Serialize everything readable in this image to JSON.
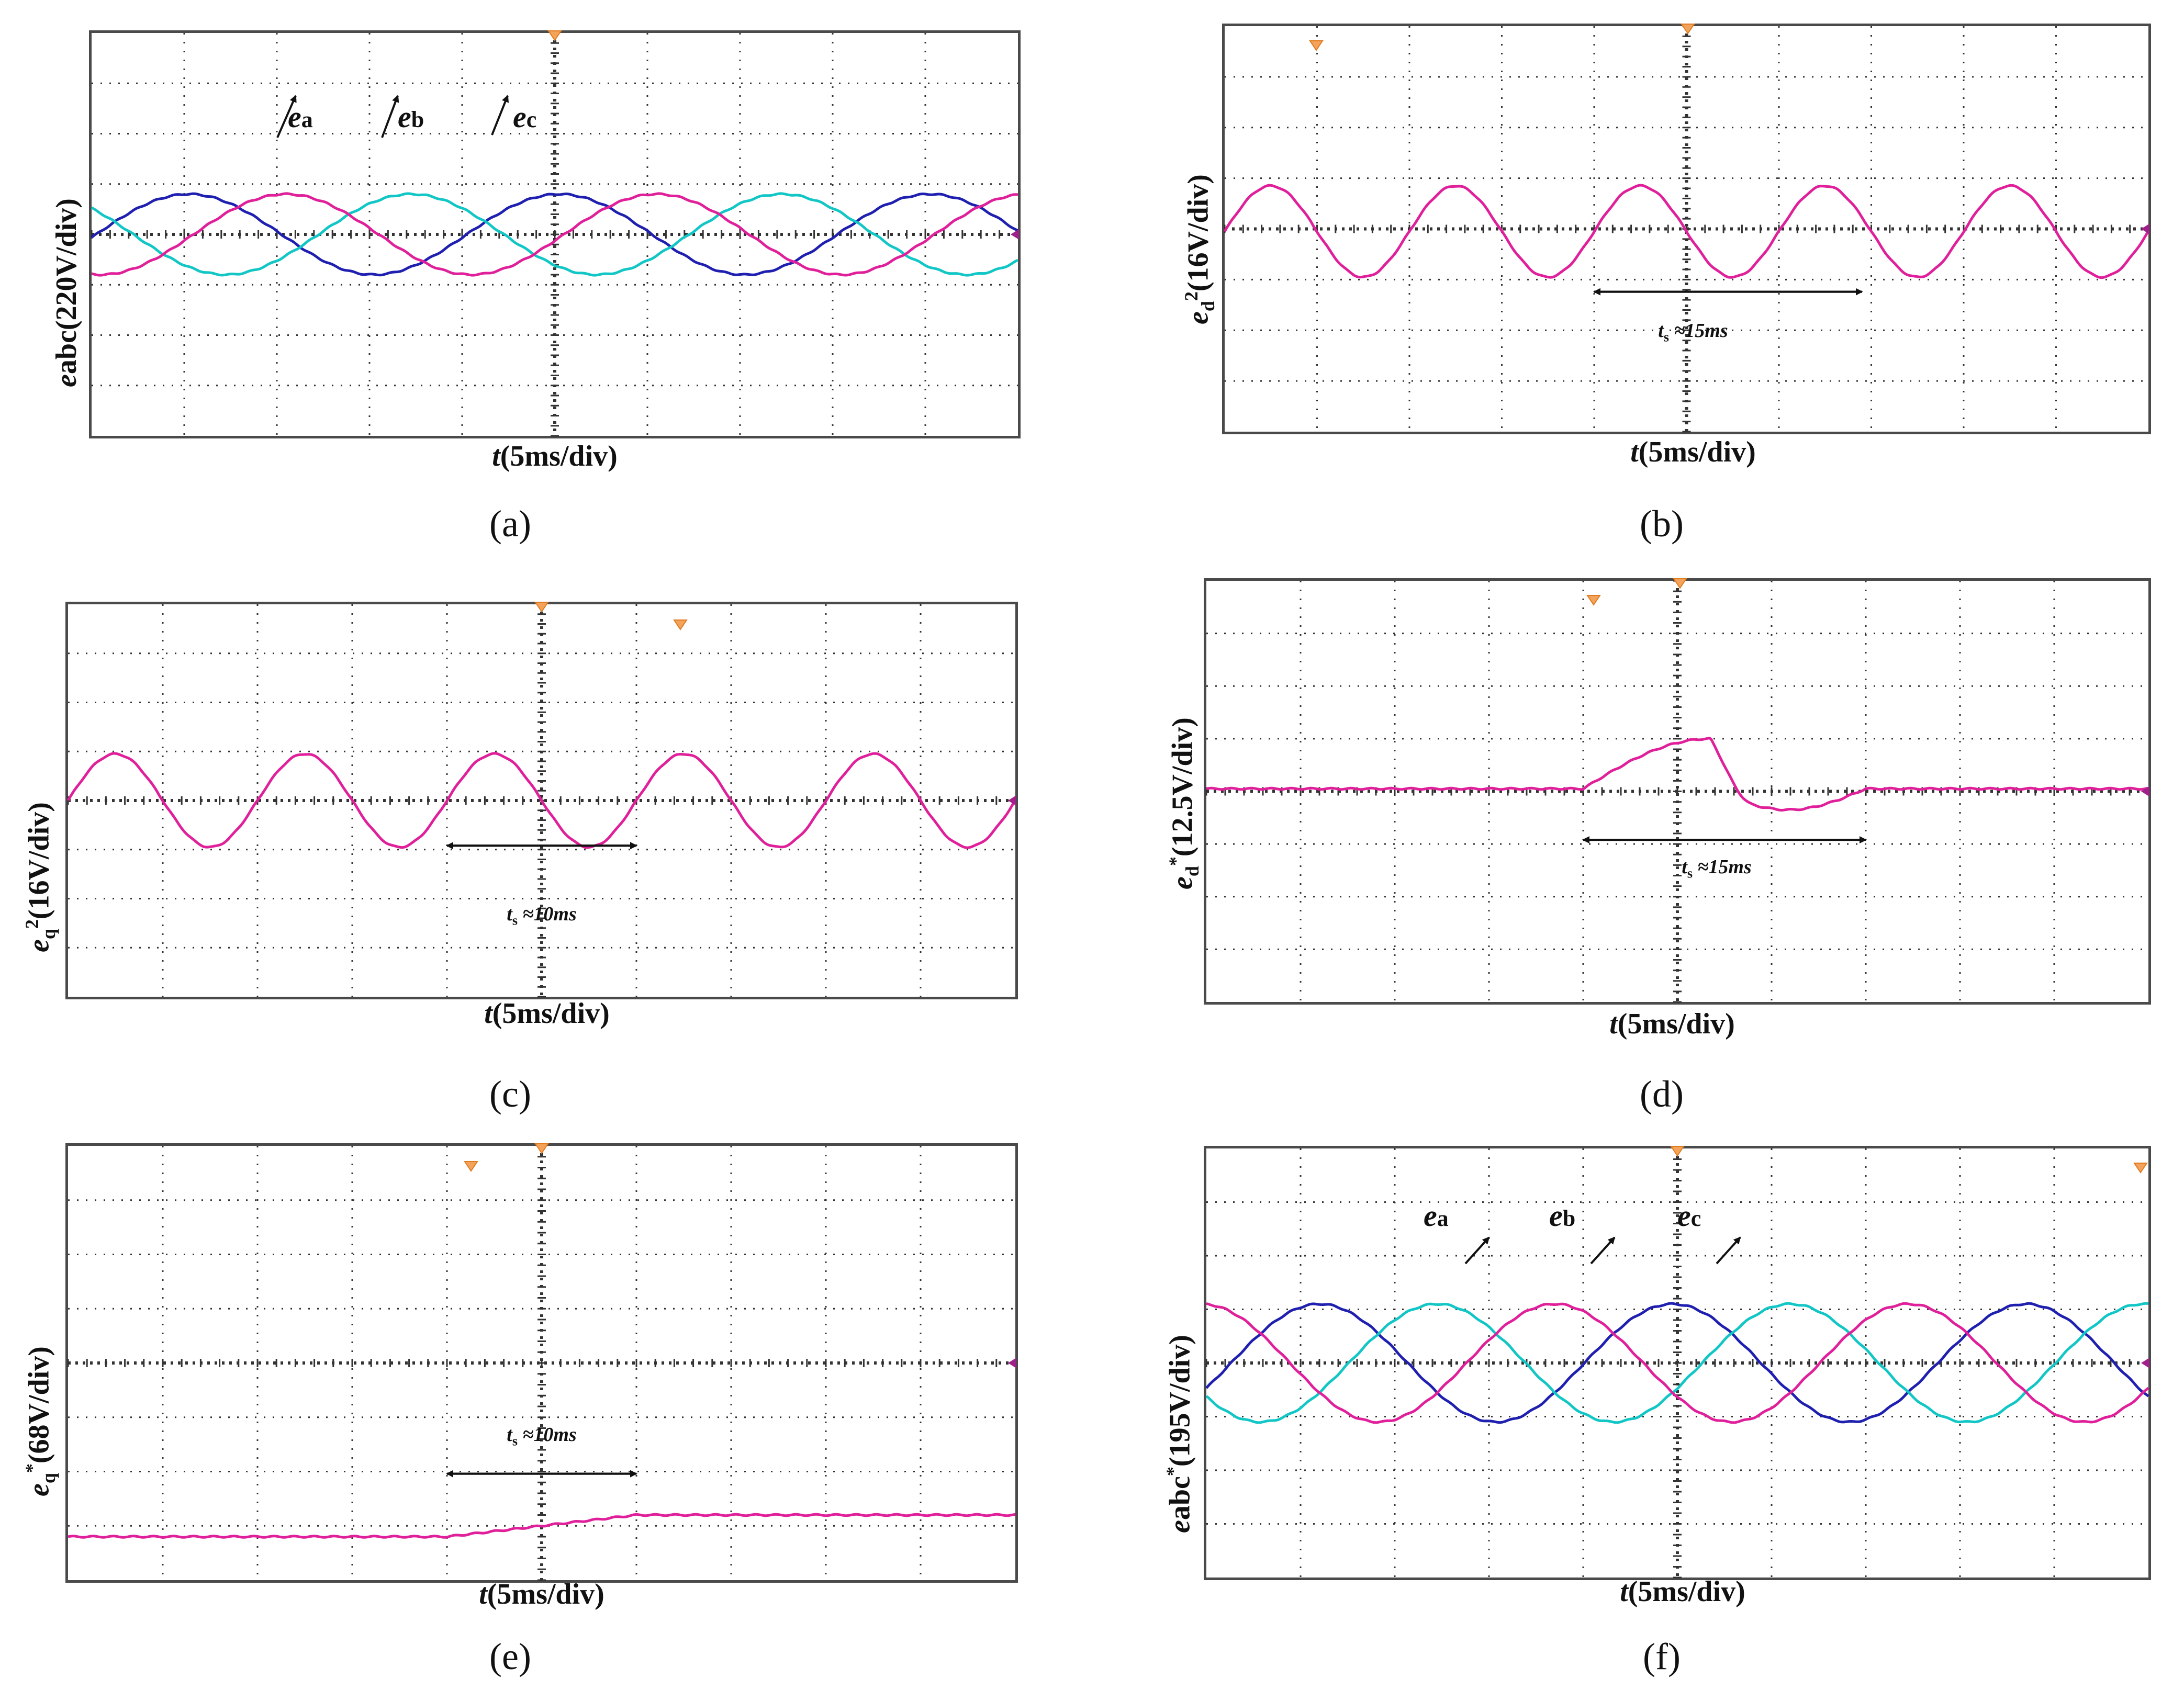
{
  "figure": {
    "time_scale_label": "t(5ms/div)",
    "grid_divisions": {
      "x": 10,
      "y": 8
    }
  },
  "chart_data": [
    {
      "id": "a",
      "type": "line",
      "caption": "(a)",
      "ylabel": {
        "base": "e",
        "suffix": "abc(220V/div)",
        "italic_base": true
      },
      "xlabel": {
        "var": "t",
        "unit": "(5ms/div)"
      },
      "x_range_div": [
        0,
        10
      ],
      "y_range_div": [
        -4,
        4
      ],
      "series": [
        {
          "name": "e_a",
          "label": "a",
          "color": "#1f1fb0",
          "kind": "sine",
          "amplitude_div": 0.8,
          "period_div": 4.0,
          "phase_div": 1.05,
          "offset_div": 0.0
        },
        {
          "name": "e_b",
          "label": "b",
          "color": "#12c6c6",
          "kind": "sine",
          "amplitude_div": 0.8,
          "period_div": 4.0,
          "phase_div": 3.45,
          "offset_div": 0.0
        },
        {
          "name": "e_c",
          "label": "c",
          "color": "#e0209a",
          "kind": "sine",
          "amplitude_div": 0.8,
          "period_div": 4.0,
          "phase_div": 2.1,
          "offset_div": 0.0
        }
      ],
      "phase_labels": [
        "e",
        "e",
        "e"
      ]
    },
    {
      "id": "b",
      "type": "line",
      "caption": "(b)",
      "ylabel": {
        "base": "e",
        "sub": "d",
        "sup": "2",
        "rest": "(16V/div)"
      },
      "xlabel": {
        "var": "t",
        "unit": "(5ms/div)"
      },
      "x_range_div": [
        0,
        10
      ],
      "y_range_div": [
        -4,
        4
      ],
      "series": [
        {
          "name": "e_d^2",
          "color": "#e0209a",
          "kind": "sine",
          "amplitude_div": 0.9,
          "period_div": 2.0,
          "phase_div": 0.5,
          "offset_div": -0.05
        }
      ],
      "annotation": {
        "text_var": "t",
        "text_sub": "s",
        "text_rest": " ≈15ms",
        "from_div": 4.0,
        "to_div": 6.9
      }
    },
    {
      "id": "c",
      "type": "line",
      "caption": "(c)",
      "ylabel": {
        "base": "e",
        "sub": "q",
        "sup": "2",
        "rest": "(16V/div)"
      },
      "xlabel": {
        "var": "t",
        "unit": "(5ms/div)"
      },
      "x_range_div": [
        0,
        10
      ],
      "y_range_div": [
        -4,
        4
      ],
      "series": [
        {
          "name": "e_q^2",
          "color": "#e0209a",
          "kind": "sine",
          "amplitude_div": 0.95,
          "period_div": 2.0,
          "phase_div": 0.5,
          "offset_div": 0.0
        }
      ],
      "annotation": {
        "text_var": "t",
        "text_sub": "s",
        "text_rest": " ≈10ms",
        "from_div": 4.0,
        "to_div": 6.0
      }
    },
    {
      "id": "d",
      "type": "line",
      "caption": "(d)",
      "ylabel": {
        "base": "e",
        "sub": "d",
        "sup": "*",
        "rest": "(12.5V/div)"
      },
      "xlabel": {
        "var": "t",
        "unit": "(5ms/div)"
      },
      "x_range_div": [
        0,
        10
      ],
      "y_range_div": [
        -4,
        4
      ],
      "series": [
        {
          "name": "e_d*",
          "color": "#e0209a",
          "kind": "bump",
          "baseline_div": 0.05,
          "start_div": 4.0,
          "end_div": 7.0,
          "peak_div": 0.95,
          "trough_div": -0.4
        }
      ],
      "annotation": {
        "text_var": "t",
        "text_sub": "s",
        "text_rest": " ≈15ms",
        "from_div": 4.0,
        "to_div": 7.0
      }
    },
    {
      "id": "e",
      "type": "line",
      "caption": "(e)",
      "ylabel": {
        "base": "e",
        "sub": "q",
        "sup": "*",
        "rest": "(68V/div)"
      },
      "xlabel": {
        "var": "t",
        "unit": "(5ms/div)"
      },
      "x_range_div": [
        0,
        10
      ],
      "y_range_div": [
        -4,
        4
      ],
      "series": [
        {
          "name": "e_q*",
          "color": "#e0209a",
          "kind": "step",
          "start_level_div": -3.2,
          "end_level_div": -2.8,
          "step_start_div": 4.0,
          "step_end_div": 6.0
        }
      ],
      "annotation": {
        "text_var": "t",
        "text_sub": "s",
        "text_rest": " ≈10ms",
        "from_div": 4.0,
        "to_div": 6.0
      }
    },
    {
      "id": "f",
      "type": "line",
      "caption": "(f)",
      "ylabel": {
        "base": "e",
        "suffix": "abc",
        "sup": "*",
        "rest": "(195V/div)",
        "italic_base": true
      },
      "xlabel": {
        "var": "t",
        "unit": "(5ms/div)"
      },
      "x_range_div": [
        0,
        10
      ],
      "y_range_div": [
        -4,
        4
      ],
      "series": [
        {
          "name": "e_a",
          "label": "a",
          "color": "#1f1fb0",
          "kind": "sine",
          "amplitude_div": 1.1,
          "period_div": 3.75,
          "phase_div": 1.2,
          "offset_div": 0.0
        },
        {
          "name": "e_b",
          "label": "b",
          "color": "#12c6c6",
          "kind": "sine",
          "amplitude_div": 1.1,
          "period_div": 3.75,
          "phase_div": 2.45,
          "offset_div": 0.0
        },
        {
          "name": "e_c",
          "label": "c",
          "color": "#e0209a",
          "kind": "sine",
          "amplitude_div": 1.1,
          "period_div": 3.75,
          "phase_div": 3.7,
          "offset_div": 0.0
        }
      ],
      "phase_labels": [
        "e",
        "e",
        "e"
      ]
    }
  ]
}
